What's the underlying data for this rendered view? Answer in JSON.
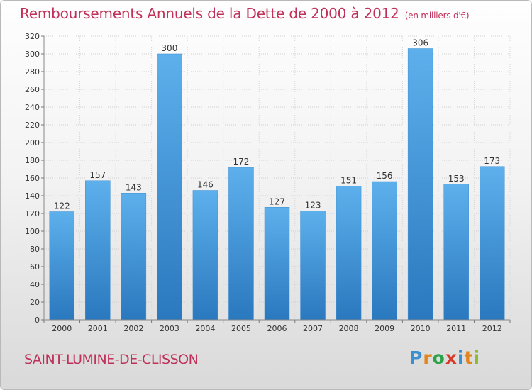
{
  "title": "Remboursements Annuels de la Dette de 2000 à 2012",
  "unit": "(en milliers d'€)",
  "commune": "SAINT-LUMINE-DE-CLISSON",
  "brand": {
    "letters": [
      "P",
      "r",
      "o",
      "x",
      "i",
      "t",
      "i"
    ],
    "colors": [
      "#3a8fd0",
      "#e2861b",
      "#2ca24a",
      "#d83a2a",
      "#3a8fd0",
      "#e2861b",
      "#8bbd2c"
    ]
  },
  "colors": {
    "bar": "#4ea3e2",
    "bar_dark": "#2a78be",
    "title": "#c0315a"
  },
  "chart_data": {
    "type": "bar",
    "categories": [
      "2000",
      "2001",
      "2002",
      "2003",
      "2004",
      "2005",
      "2006",
      "2007",
      "2008",
      "2009",
      "2010",
      "2011",
      "2012"
    ],
    "values": [
      122,
      157,
      143,
      300,
      146,
      172,
      127,
      123,
      151,
      156,
      306,
      153,
      173
    ],
    "ylim": [
      0,
      320
    ],
    "yticks": [
      0,
      20,
      40,
      60,
      80,
      100,
      120,
      140,
      160,
      180,
      200,
      220,
      240,
      260,
      280,
      300,
      320
    ],
    "grid": true
  }
}
